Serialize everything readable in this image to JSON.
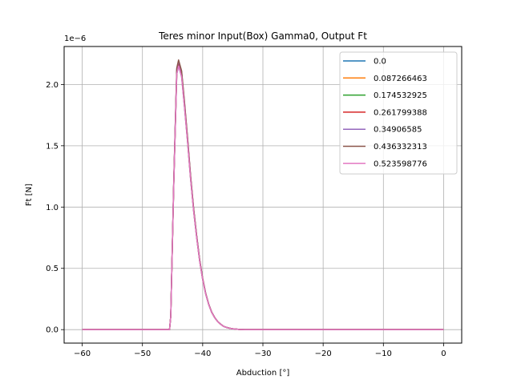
{
  "chart_data": {
    "type": "line",
    "title": "Teres minor Input(Box) Gamma0, Output Ft",
    "xlabel": "Abduction [°]",
    "ylabel": "Ft [N]",
    "y_offset_label": "1e−6",
    "xlim": [
      -63,
      3
    ],
    "ylim": [
      -0.11,
      2.31
    ],
    "y_scale_factor": 1e-06,
    "x_ticks": [
      -60,
      -50,
      -40,
      -30,
      -20,
      -10,
      0
    ],
    "x_tick_labels": [
      "−60",
      "−50",
      "−40",
      "−30",
      "−20",
      "−10",
      "0"
    ],
    "y_ticks": [
      0,
      0.5,
      1.0,
      1.5,
      2.0
    ],
    "y_tick_labels": [
      "0.0",
      "0.5",
      "1.0",
      "1.5",
      "2.0"
    ],
    "grid": true,
    "legend_position": "top-right",
    "series": [
      {
        "name": "0.0",
        "color": "#1f77b4",
        "peak": 2.15
      },
      {
        "name": "0.087266463",
        "color": "#ff7f0e",
        "peak": 2.16
      },
      {
        "name": "0.174532925",
        "color": "#2ca02c",
        "peak": 2.17
      },
      {
        "name": "0.261799388",
        "color": "#d62728",
        "peak": 2.18
      },
      {
        "name": "0.34906585",
        "color": "#9467bd",
        "peak": 2.19
      },
      {
        "name": "0.436332313",
        "color": "#8c564b",
        "peak": 2.2
      },
      {
        "name": "0.523598776",
        "color": "#e377c2",
        "peak": 2.15
      }
    ],
    "shape": {
      "x": [
        -60,
        -45.5,
        -45.3,
        -44.8,
        -44.3,
        -44,
        -43.5,
        -43,
        -42.5,
        -42,
        -41.5,
        -41,
        -40.5,
        -40,
        -39.5,
        -39,
        -38.5,
        -38,
        -37.5,
        -37,
        -36.5,
        -36,
        -35.5,
        -35,
        -34.5,
        -34,
        -33,
        -30,
        -20,
        -10,
        0
      ],
      "y_rel": [
        0,
        0,
        0.05,
        0.55,
        0.97,
        1.0,
        0.96,
        0.84,
        0.71,
        0.57,
        0.45,
        0.35,
        0.26,
        0.19,
        0.135,
        0.095,
        0.065,
        0.045,
        0.03,
        0.02,
        0.012,
        0.008,
        0.005,
        0.003,
        0.002,
        0.001,
        0,
        0,
        0,
        0,
        0
      ]
    }
  }
}
